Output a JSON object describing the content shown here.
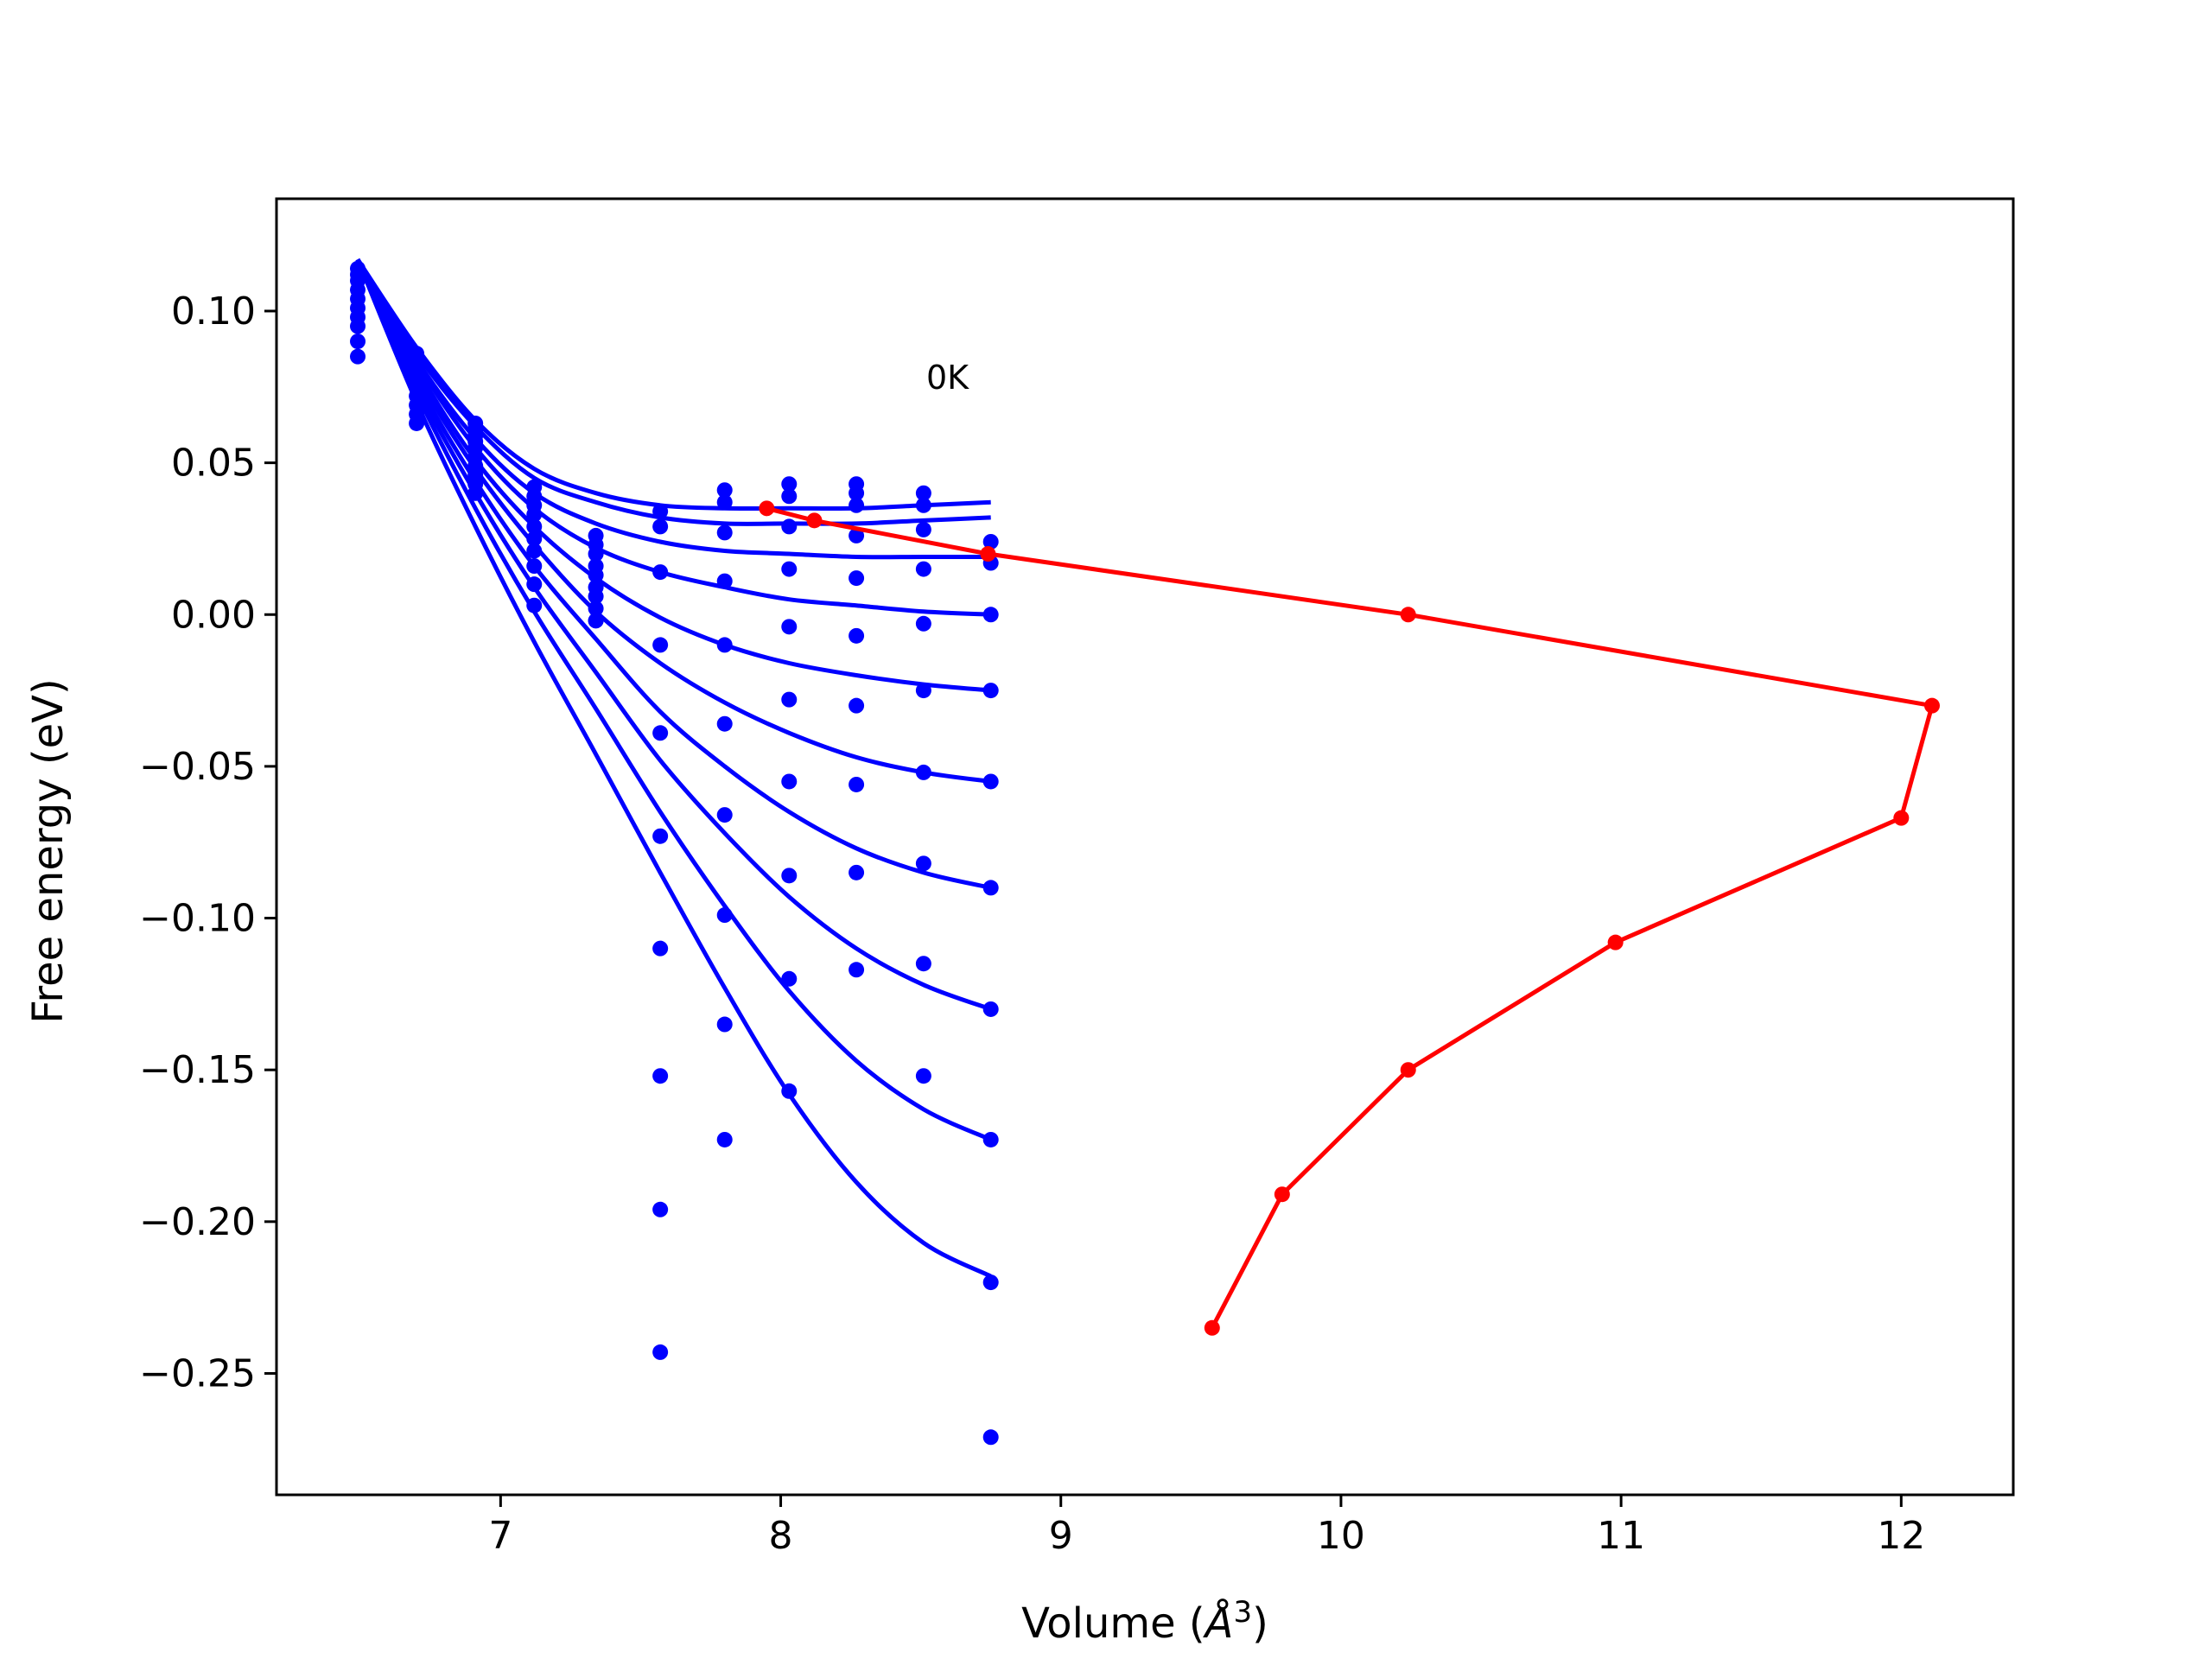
{
  "chart_data": {
    "type": "scatter",
    "xlabel": "Volume (",
    "xlabel_unit": "Å",
    "xlabel_sup": "3",
    "xlabel_close": ")",
    "ylabel": "Free energy (eV)",
    "annotation": "0K",
    "xlim": [
      6.2,
      12.4
    ],
    "ylim": [
      -0.29,
      0.137
    ],
    "xticks": [
      7,
      8,
      9,
      10,
      11,
      12
    ],
    "xtick_labels": [
      "7",
      "8",
      "9",
      "10",
      "11",
      "12"
    ],
    "yticks": [
      0.1,
      0.05,
      0.0,
      -0.05,
      -0.1,
      -0.15,
      -0.2,
      -0.25
    ],
    "ytick_labels": [
      "0.10",
      "0.05",
      "0.00",
      "−0.05",
      "−0.10",
      "−0.15",
      "−0.20",
      "−0.25"
    ],
    "grid": false,
    "colors": {
      "fit": "#0000ff",
      "points": "#0000ff",
      "minima": "#ff0000"
    },
    "volumes": [
      6.49,
      6.7,
      6.91,
      7.12,
      7.34,
      7.57,
      7.8,
      8.03,
      8.27,
      8.51,
      8.75
    ],
    "isotherm_points": [
      [
        0.114,
        0.086,
        0.063,
        0.042,
        0.026,
        0.034,
        0.041,
        0.043,
        0.043,
        0.04,
        0.024
      ],
      [
        0.112,
        0.084,
        0.061,
        0.039,
        0.023,
        0.029,
        0.037,
        0.039,
        0.04,
        0.036,
        0.017
      ],
      [
        0.11,
        0.082,
        0.059,
        0.036,
        0.02,
        0.014,
        0.027,
        0.029,
        0.036,
        0.028,
        0.0
      ],
      [
        0.107,
        0.08,
        0.057,
        0.033,
        0.016,
        -0.01,
        0.011,
        0.015,
        0.026,
        0.015,
        -0.025
      ],
      [
        0.104,
        0.077,
        0.055,
        0.029,
        0.013,
        -0.039,
        -0.01,
        -0.004,
        0.012,
        -0.003,
        -0.055
      ],
      [
        0.101,
        0.075,
        0.052,
        0.025,
        0.009,
        -0.073,
        -0.036,
        -0.028,
        -0.007,
        -0.025,
        -0.09
      ],
      [
        0.098,
        0.072,
        0.049,
        0.021,
        0.006,
        -0.11,
        -0.066,
        -0.055,
        -0.03,
        -0.052,
        -0.13
      ],
      [
        0.095,
        0.069,
        0.046,
        0.016,
        0.002,
        -0.152,
        -0.099,
        -0.086,
        -0.056,
        -0.082,
        -0.173
      ],
      [
        0.09,
        0.066,
        0.043,
        0.01,
        -0.002,
        -0.196,
        -0.135,
        -0.12,
        -0.085,
        -0.115,
        -0.22
      ],
      [
        0.085,
        0.063,
        0.04,
        0.003,
        -0.002,
        -0.243,
        -0.173,
        -0.157,
        -0.117,
        -0.152,
        -0.271
      ]
    ],
    "fit_curves": [
      {
        "x": [
          6.49,
          6.7,
          6.91,
          7.12,
          7.34,
          7.57,
          7.8,
          8.03,
          8.27,
          8.51,
          8.75
        ],
        "y": [
          0.117,
          0.088,
          0.064,
          0.048,
          0.04,
          0.036,
          0.035,
          0.035,
          0.035,
          0.036,
          0.037
        ]
      },
      {
        "x": [
          6.49,
          6.7,
          6.91,
          7.12,
          7.34,
          7.57,
          7.8,
          8.03,
          8.27,
          8.51,
          8.75
        ],
        "y": [
          0.117,
          0.086,
          0.062,
          0.045,
          0.037,
          0.032,
          0.03,
          0.03,
          0.03,
          0.031,
          0.032
        ]
      },
      {
        "x": [
          6.49,
          6.7,
          6.91,
          7.12,
          7.34,
          7.57,
          7.8,
          8.03,
          8.27,
          8.51,
          8.75
        ],
        "y": [
          0.117,
          0.084,
          0.058,
          0.04,
          0.03,
          0.024,
          0.021,
          0.02,
          0.019,
          0.019,
          0.019
        ]
      },
      {
        "x": [
          6.49,
          6.7,
          6.91,
          7.12,
          7.34,
          7.57,
          7.8,
          8.03,
          8.27,
          8.51,
          8.75
        ],
        "y": [
          0.117,
          0.083,
          0.055,
          0.035,
          0.022,
          0.014,
          0.009,
          0.005,
          0.003,
          0.001,
          0.0
        ]
      },
      {
        "x": [
          6.49,
          6.7,
          6.91,
          7.12,
          7.34,
          7.57,
          7.8,
          8.03,
          8.27,
          8.51,
          8.75
        ],
        "y": [
          0.117,
          0.081,
          0.051,
          0.029,
          0.012,
          -0.001,
          -0.01,
          -0.016,
          -0.02,
          -0.023,
          -0.025
        ]
      },
      {
        "x": [
          6.49,
          6.7,
          6.91,
          7.12,
          7.34,
          7.57,
          7.8,
          8.03,
          8.27,
          8.51,
          8.75
        ],
        "y": [
          0.117,
          0.079,
          0.048,
          0.023,
          0.001,
          -0.016,
          -0.029,
          -0.039,
          -0.047,
          -0.052,
          -0.055
        ]
      },
      {
        "x": [
          6.49,
          6.7,
          6.91,
          7.12,
          7.34,
          7.57,
          7.8,
          8.03,
          8.27,
          8.51,
          8.75
        ],
        "y": [
          0.117,
          0.077,
          0.044,
          0.016,
          -0.008,
          -0.032,
          -0.05,
          -0.065,
          -0.077,
          -0.085,
          -0.09
        ]
      },
      {
        "x": [
          6.49,
          6.7,
          6.91,
          7.12,
          7.34,
          7.57,
          7.8,
          8.03,
          8.27,
          8.51,
          8.75
        ],
        "y": [
          0.117,
          0.075,
          0.04,
          0.009,
          -0.019,
          -0.048,
          -0.072,
          -0.093,
          -0.11,
          -0.122,
          -0.13
        ]
      },
      {
        "x": [
          6.49,
          6.7,
          6.91,
          7.12,
          7.34,
          7.57,
          7.8,
          8.03,
          8.27,
          8.51,
          8.75
        ],
        "y": [
          0.117,
          0.073,
          0.035,
          0.001,
          -0.031,
          -0.065,
          -0.096,
          -0.124,
          -0.147,
          -0.163,
          -0.173
        ]
      },
      {
        "x": [
          6.49,
          6.7,
          6.91,
          7.12,
          7.34,
          7.57,
          7.8,
          8.03,
          8.27,
          8.51,
          8.75
        ],
        "y": [
          0.117,
          0.07,
          0.029,
          -0.009,
          -0.046,
          -0.085,
          -0.123,
          -0.158,
          -0.187,
          -0.207,
          -0.218
        ]
      }
    ],
    "minima_path": {
      "x": [
        7.95,
        8.12,
        8.74,
        10.24,
        12.11,
        12.0,
        10.98,
        10.24,
        9.79,
        9.54
      ],
      "y": [
        0.035,
        0.031,
        0.02,
        0.0,
        -0.03,
        -0.067,
        -0.108,
        -0.15,
        -0.191,
        -0.235
      ]
    }
  }
}
